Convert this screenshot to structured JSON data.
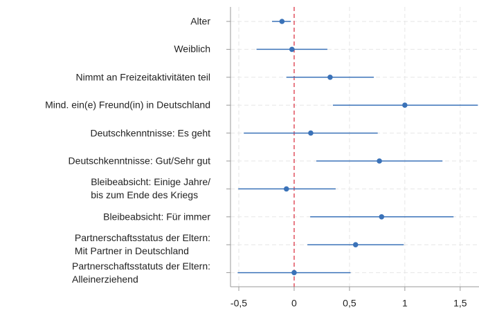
{
  "chart_data": {
    "type": "coefplot",
    "categories": [
      "Alter",
      "Weiblich",
      "Nimmt an Freizeitaktivitäten teil",
      "Mind. ein(e) Freund(in) in Deutschland",
      "Deutschkenntnisse: Es geht",
      "Deutschkenntnisse: Gut/Sehr gut",
      "Bleibeabsicht: Einige Jahre/\nbis zum Ende des Kriegs",
      "Bleibeabsicht: Für immer",
      "Partnerschaftsstatus der Eltern:\nMit Partner in Deutschland",
      "Partnerschaftsstatuts der Eltern:\nAlleinerziehend"
    ],
    "series": [
      {
        "color": "#3a72b8",
        "values": [
          -0.11,
          -0.02,
          0.325,
          1.0,
          0.15,
          0.77,
          -0.07,
          0.79,
          0.555,
          0.0
        ],
        "ci_low": [
          -0.2,
          -0.34,
          -0.07,
          0.35,
          -0.455,
          0.2,
          -0.505,
          0.145,
          0.12,
          -0.51
        ],
        "ci_high": [
          -0.03,
          0.3,
          0.72,
          1.66,
          0.755,
          1.34,
          0.375,
          1.44,
          0.99,
          0.51
        ]
      }
    ],
    "xlim": [
      -0.575,
      1.67
    ],
    "xticks": [
      {
        "value": -0.5,
        "label": "-0,5"
      },
      0,
      {
        "value": 0.5,
        "label": "0,5"
      },
      1,
      {
        "value": 1.5,
        "label": "1,5"
      }
    ],
    "reference_line": {
      "value": 0,
      "color": "#e0505e"
    },
    "grid": true
  }
}
